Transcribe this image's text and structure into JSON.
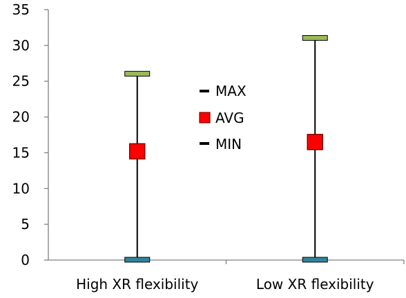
{
  "chart_data": {
    "type": "stock",
    "categories": [
      "High XR flexibility",
      "Low XR flexibility"
    ],
    "series": [
      {
        "name": "MAX",
        "values": [
          26,
          31
        ],
        "color": "#9bbb59"
      },
      {
        "name": "AVG",
        "values": [
          15.2,
          16.5
        ],
        "color": "#ff0000"
      },
      {
        "name": "MIN",
        "values": [
          0,
          0
        ],
        "color": "#31859c"
      }
    ],
    "yticks": [
      "0",
      "5",
      "10",
      "15",
      "20",
      "25",
      "30",
      "35"
    ],
    "ylim": [
      0,
      35
    ],
    "ystep": 5,
    "grid": false,
    "legend": "center"
  }
}
